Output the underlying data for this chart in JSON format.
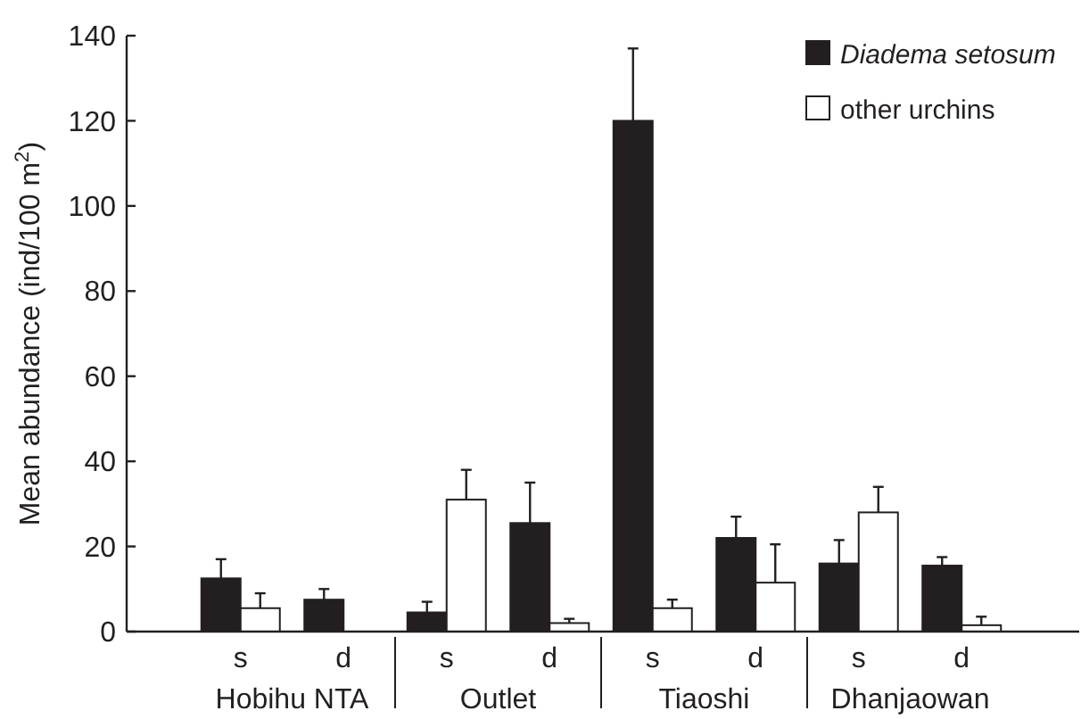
{
  "chart_data": {
    "type": "bar",
    "ylabel": "Mean abundance (ind/100 m$^{2}$)",
    "categories": [
      "s",
      "d",
      "s",
      "d",
      "s",
      "d",
      "s",
      "d"
    ],
    "series": [
      {
        "name": "Diadema setosum",
        "color": "#231f20",
        "values": [
          12.5,
          7.5,
          4.5,
          25.5,
          120,
          22,
          16,
          15.5
        ],
        "errors": [
          [
            12.5,
            17
          ],
          [
            7.5,
            10
          ],
          [
            4.5,
            7
          ],
          [
            25.5,
            35
          ],
          [
            120,
            137
          ],
          [
            22,
            27
          ],
          [
            16,
            21.5
          ],
          [
            15.5,
            17.5
          ]
        ]
      },
      {
        "name": "other urchins",
        "color": "#ffffff",
        "values": [
          5.5,
          0,
          31,
          2,
          5.5,
          11.5,
          28,
          1.5
        ],
        "errors": [
          [
            5.5,
            9
          ],
          null,
          [
            31,
            38
          ],
          [
            2,
            3
          ],
          [
            5.5,
            7.5
          ],
          [
            11.5,
            20.5
          ],
          [
            28,
            34
          ],
          [
            1.5,
            3.5
          ]
        ]
      }
    ],
    "annotations": [
      "Hobihu NTA",
      "Outlet",
      "Tiaoshi",
      "Dhanjaowan"
    ],
    "ylim": [
      0,
      140
    ],
    "yticks": [
      0,
      20,
      40,
      60,
      80,
      100,
      120,
      140
    ],
    "legend": "top right"
  }
}
